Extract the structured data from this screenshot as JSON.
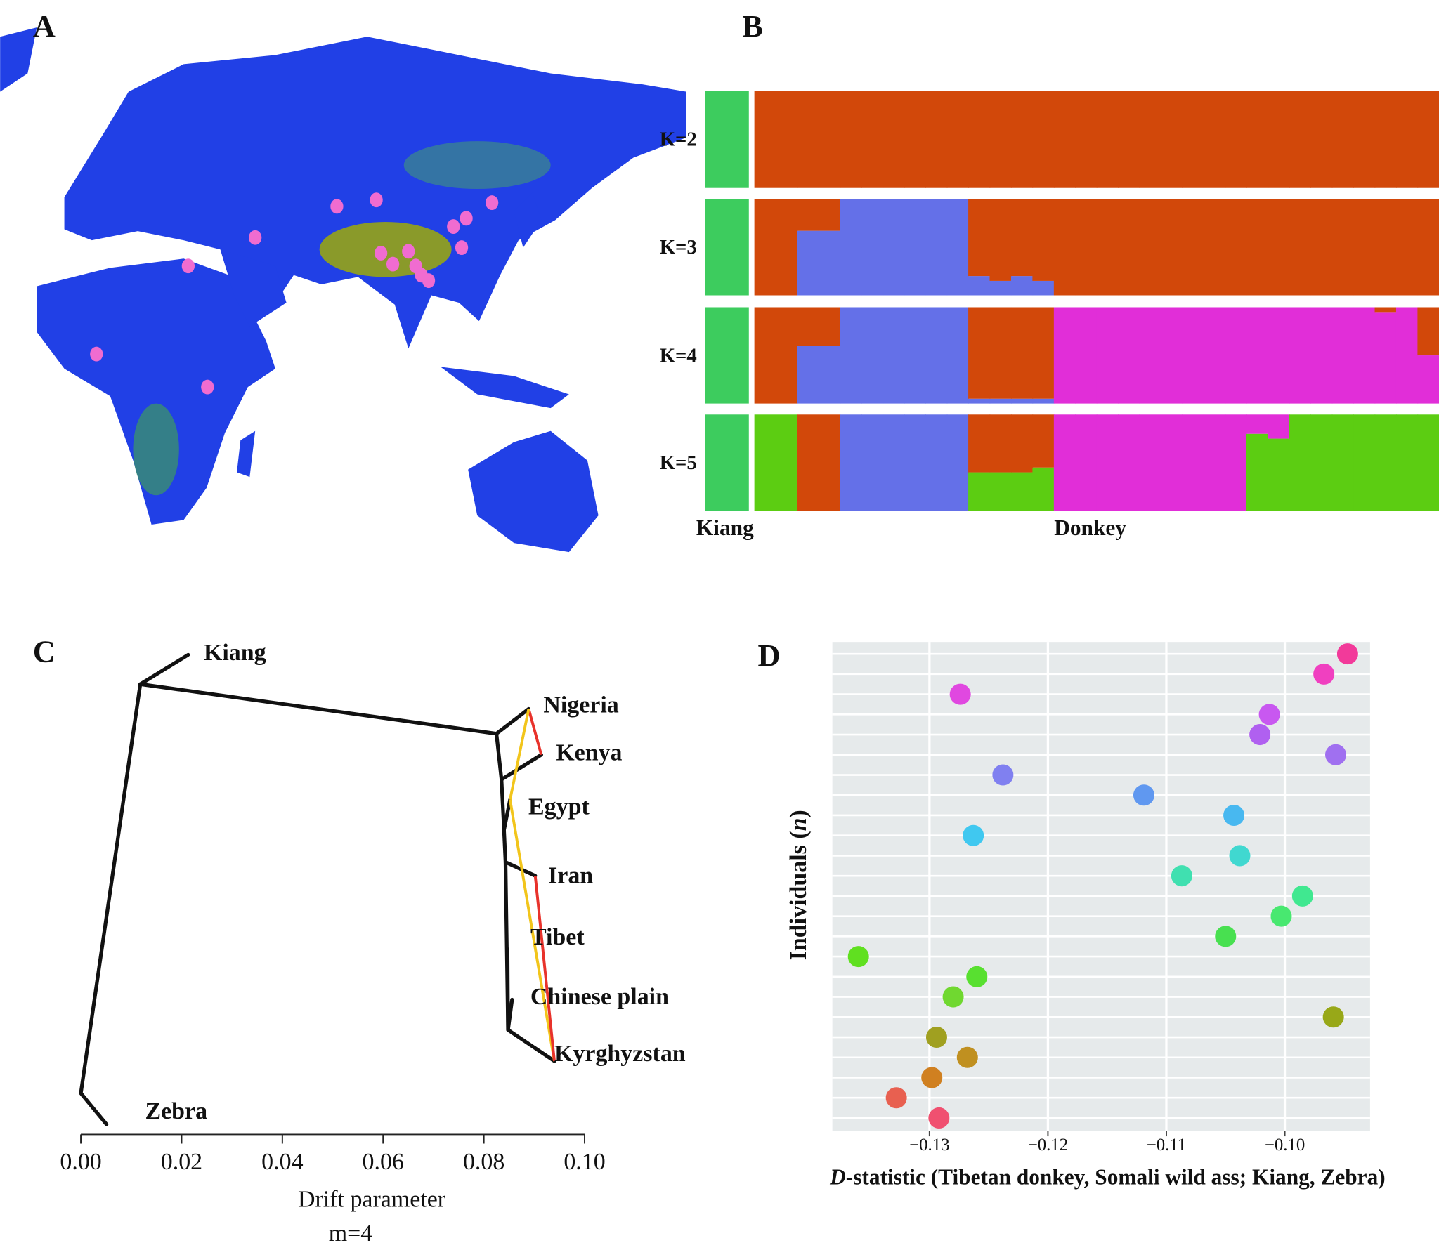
{
  "chart_data": [
    {
      "type": "map",
      "label": "A"
    },
    {
      "type": "structure",
      "label": "B",
      "categories": [
        null,
        null,
        null,
        null,
        null,
        null,
        null,
        null,
        null,
        null,
        null,
        null,
        null,
        null,
        null,
        null,
        null,
        null,
        null,
        null,
        null,
        null,
        null,
        null,
        null,
        null,
        null,
        null,
        null,
        null,
        null,
        null,
        null
      ],
      "group_labels": [
        "Kiang",
        "Donkey"
      ],
      "panels": [
        {
          "title": "K=2",
          "series": [
            {
              "color": "#3dcc5e",
              "values": [
                1,
                0,
                0,
                0,
                0,
                0,
                0,
                0,
                0,
                0,
                0,
                0,
                0,
                0,
                0,
                0,
                0,
                0,
                0,
                0,
                0,
                0,
                0,
                0,
                0,
                0,
                0,
                0,
                0,
                0,
                0,
                0,
                0
              ]
            },
            {
              "color": "#d2480a",
              "values": [
                0,
                1,
                1,
                1,
                1,
                1,
                1,
                1,
                1,
                1,
                1,
                1,
                1,
                1,
                1,
                1,
                1,
                1,
                1,
                1,
                1,
                1,
                1,
                1,
                1,
                1,
                1,
                1,
                1,
                1,
                1,
                1,
                1
              ]
            }
          ]
        },
        {
          "title": "K=3",
          "series": [
            {
              "color": "#3dcc5e",
              "values": [
                1,
                0,
                0,
                0,
                0,
                0,
                0,
                0,
                0,
                0,
                0,
                0,
                0,
                0,
                0,
                0,
                0,
                0,
                0,
                0,
                0,
                0,
                0,
                0,
                0,
                0,
                0,
                0,
                0,
                0,
                0,
                0,
                0
              ]
            },
            {
              "color": "#6470e8",
              "values": [
                0,
                0,
                0,
                0.67,
                0.67,
                1,
                1,
                1,
                1,
                1,
                1,
                0.2,
                0.15,
                0.2,
                0.15,
                0,
                0,
                0,
                0,
                0,
                0,
                0,
                0,
                0,
                0,
                0,
                0,
                0,
                0,
                0,
                0,
                0,
                0
              ]
            },
            {
              "color": "#d2480a",
              "values": [
                0,
                1,
                1,
                0.33,
                0.33,
                0,
                0,
                0,
                0,
                0,
                0,
                0.8,
                0.85,
                0.8,
                0.85,
                1,
                1,
                1,
                1,
                1,
                1,
                1,
                1,
                1,
                1,
                1,
                1,
                1,
                1,
                1,
                1,
                1,
                1
              ]
            }
          ]
        },
        {
          "title": "K=4",
          "series": [
            {
              "color": "#3dcc5e",
              "values": [
                1,
                0,
                0,
                0,
                0,
                0,
                0,
                0,
                0,
                0,
                0,
                0,
                0,
                0,
                0,
                0,
                0,
                0,
                0,
                0,
                0,
                0,
                0,
                0,
                0,
                0,
                0,
                0,
                0,
                0,
                0,
                0,
                0
              ]
            },
            {
              "color": "#6470e8",
              "values": [
                0,
                0,
                0,
                0.6,
                0.6,
                1,
                1,
                1,
                1,
                1,
                1,
                0.05,
                0.05,
                0.05,
                0.05,
                0,
                0,
                0,
                0,
                0,
                0,
                0,
                0,
                0,
                0,
                0,
                0,
                0,
                0,
                0,
                0,
                0,
                0
              ]
            },
            {
              "color": "#e12ed8",
              "values": [
                0,
                0,
                0,
                0,
                0,
                0,
                0,
                0,
                0,
                0,
                0,
                0,
                0,
                0,
                0,
                1,
                1,
                1,
                1,
                1,
                1,
                1,
                1,
                1,
                1,
                1,
                1,
                1,
                1,
                1,
                0.95,
                1,
                0.5
              ]
            },
            {
              "color": "#d2480a",
              "values": [
                0,
                1,
                1,
                0.4,
                0.4,
                0,
                0,
                0,
                0,
                0,
                0,
                0.95,
                0.95,
                0.95,
                0.95,
                0,
                0,
                0,
                0,
                0,
                0,
                0,
                0,
                0,
                0,
                0,
                0,
                0,
                0,
                0,
                0.05,
                0,
                0.5
              ]
            }
          ]
        },
        {
          "title": "K=5",
          "series": [
            {
              "color": "#3dcc5e",
              "values": [
                1,
                0,
                0,
                0,
                0,
                0,
                0,
                0,
                0,
                0,
                0,
                0,
                0,
                0,
                0,
                0,
                0,
                0,
                0,
                0,
                0,
                0,
                0,
                0,
                0,
                0,
                0,
                0,
                0,
                0,
                0,
                0,
                0
              ]
            },
            {
              "color": "#5ccd12",
              "values": [
                0,
                1,
                1,
                0,
                0,
                0,
                0,
                0,
                0,
                0,
                0,
                0.4,
                0.4,
                0.4,
                0.45,
                0,
                0,
                0,
                0,
                0,
                0,
                0,
                0,
                0,
                0.8,
                0.75,
                1,
                1,
                1,
                1,
                1,
                1,
                1
              ]
            },
            {
              "color": "#6470e8",
              "values": [
                0,
                0,
                0,
                0,
                0,
                1,
                1,
                1,
                1,
                1,
                1,
                0,
                0,
                0,
                0,
                0,
                0,
                0,
                0,
                0,
                0,
                0,
                0,
                0,
                0,
                0,
                0,
                0,
                0,
                0,
                0,
                0,
                0
              ]
            },
            {
              "color": "#e12ed8",
              "values": [
                0,
                0,
                0,
                0,
                0,
                0,
                0,
                0,
                0,
                0,
                0,
                0,
                0,
                0,
                0,
                1,
                1,
                1,
                1,
                1,
                1,
                1,
                1,
                1,
                0.2,
                0.25,
                0,
                0,
                0,
                0,
                0,
                0,
                0
              ]
            },
            {
              "color": "#d2480a",
              "values": [
                0,
                0,
                0,
                1,
                1,
                0,
                0,
                0,
                0,
                0,
                0,
                0.6,
                0.6,
                0.6,
                0.55,
                0,
                0,
                0,
                0,
                0,
                0,
                0,
                0,
                0,
                0,
                0,
                0,
                0,
                0,
                0,
                0,
                0,
                0
              ]
            }
          ]
        }
      ]
    },
    {
      "type": "tree",
      "label": "C",
      "xlabel": "Drift parameter",
      "subtitle": "m=4",
      "xlim": [
        0,
        0.1
      ],
      "xticks": [
        {
          "value": 0,
          "label": "0.00"
        },
        0.02,
        0.04,
        0.06,
        0.08,
        {
          "value": 0.1,
          "label": "0.10"
        }
      ],
      "nodes": [
        {
          "x": 0.0118
        },
        {
          "name": "Kiang",
          "x": 0.0213
        },
        {
          "x": 0
        },
        {
          "name": "Zebra",
          "x": 0.0051
        },
        {
          "x": 0.0825
        },
        {
          "name": "Nigeria",
          "x": 0.0889
        },
        {
          "x": 0.0835
        },
        {
          "name": "Kenya",
          "x": 0.0914
        },
        {
          "x": 0.084
        },
        {
          "name": "Egypt",
          "x": 0.0852
        },
        {
          "x": 0.0843
        },
        {
          "name": "Iran",
          "x": 0.0902
        },
        {
          "x": 0.0848
        },
        {
          "name": "Tibet",
          "x": 0.0847
        },
        {
          "name": "Chinese plain",
          "x": 0.0856
        },
        {
          "name": "Kyrghyzstan",
          "x": 0.094
        }
      ],
      "edges": [
        [
          0,
          1
        ],
        [
          0,
          2
        ],
        [
          2,
          3
        ],
        [
          0,
          4
        ],
        [
          4,
          5
        ],
        [
          4,
          6
        ],
        [
          6,
          7
        ],
        [
          6,
          8
        ],
        [
          8,
          9
        ],
        [
          8,
          10
        ],
        [
          10,
          11
        ],
        [
          10,
          12
        ],
        [
          12,
          13
        ],
        [
          12,
          14
        ],
        [
          12,
          15
        ]
      ],
      "migrations": [
        {
          "from": 5,
          "to": 7,
          "color": "#e8322b"
        },
        {
          "from": 5,
          "to": 9,
          "color": "#f2c51b"
        },
        {
          "from": 9,
          "to": 15,
          "color": "#f2c51b"
        },
        {
          "from": 15,
          "to": 11,
          "color": "#e8322b"
        }
      ]
    },
    {
      "type": "dot",
      "label": "D",
      "xlabel": [
        "D",
        "-statistic (Tibetan donkey, Somali wild ass; Kiang, Zebra)"
      ],
      "ylabel": [
        "Individuals (",
        "n",
        ")"
      ],
      "xlim": [
        -0.1382,
        -0.0928
      ],
      "xticks": [
        {
          "value": -0.13,
          "label": "−0.13"
        },
        {
          "value": -0.12,
          "label": "−0.12"
        },
        {
          "value": -0.11,
          "label": "−0.11"
        },
        {
          "value": -0.1,
          "label": "−0.10"
        }
      ],
      "categories": [
        null,
        null,
        null,
        null,
        null,
        null,
        null,
        null,
        null,
        null,
        null,
        null,
        null,
        null,
        null,
        null,
        null,
        null,
        null,
        null,
        null,
        null,
        null,
        null
      ],
      "values": [
        -0.0947,
        -0.0967,
        -0.1274,
        -0.1013,
        -0.1021,
        -0.0957,
        -0.1238,
        -0.1119,
        -0.1043,
        -0.1263,
        -0.1038,
        -0.1087,
        -0.0985,
        -0.1003,
        -0.105,
        -0.136,
        -0.126,
        -0.128,
        -0.0959,
        -0.1294,
        -0.1268,
        -0.1298,
        -0.1328,
        -0.1292
      ],
      "colors": [
        "#f23a9a",
        "#f040c0",
        "#e048e0",
        "#c858f0",
        "#b060f0",
        "#a070f0",
        "#8080f0",
        "#6098f0",
        "#48b8f0",
        "#40c8f0",
        "#40d8d0",
        "#40e0b0",
        "#40e890",
        "#48e870",
        "#48e050",
        "#60e020",
        "#58e030",
        "#70d830",
        "#98a818",
        "#a0a020",
        "#c09020",
        "#d08020",
        "#e86050",
        "#f05070"
      ]
    }
  ]
}
